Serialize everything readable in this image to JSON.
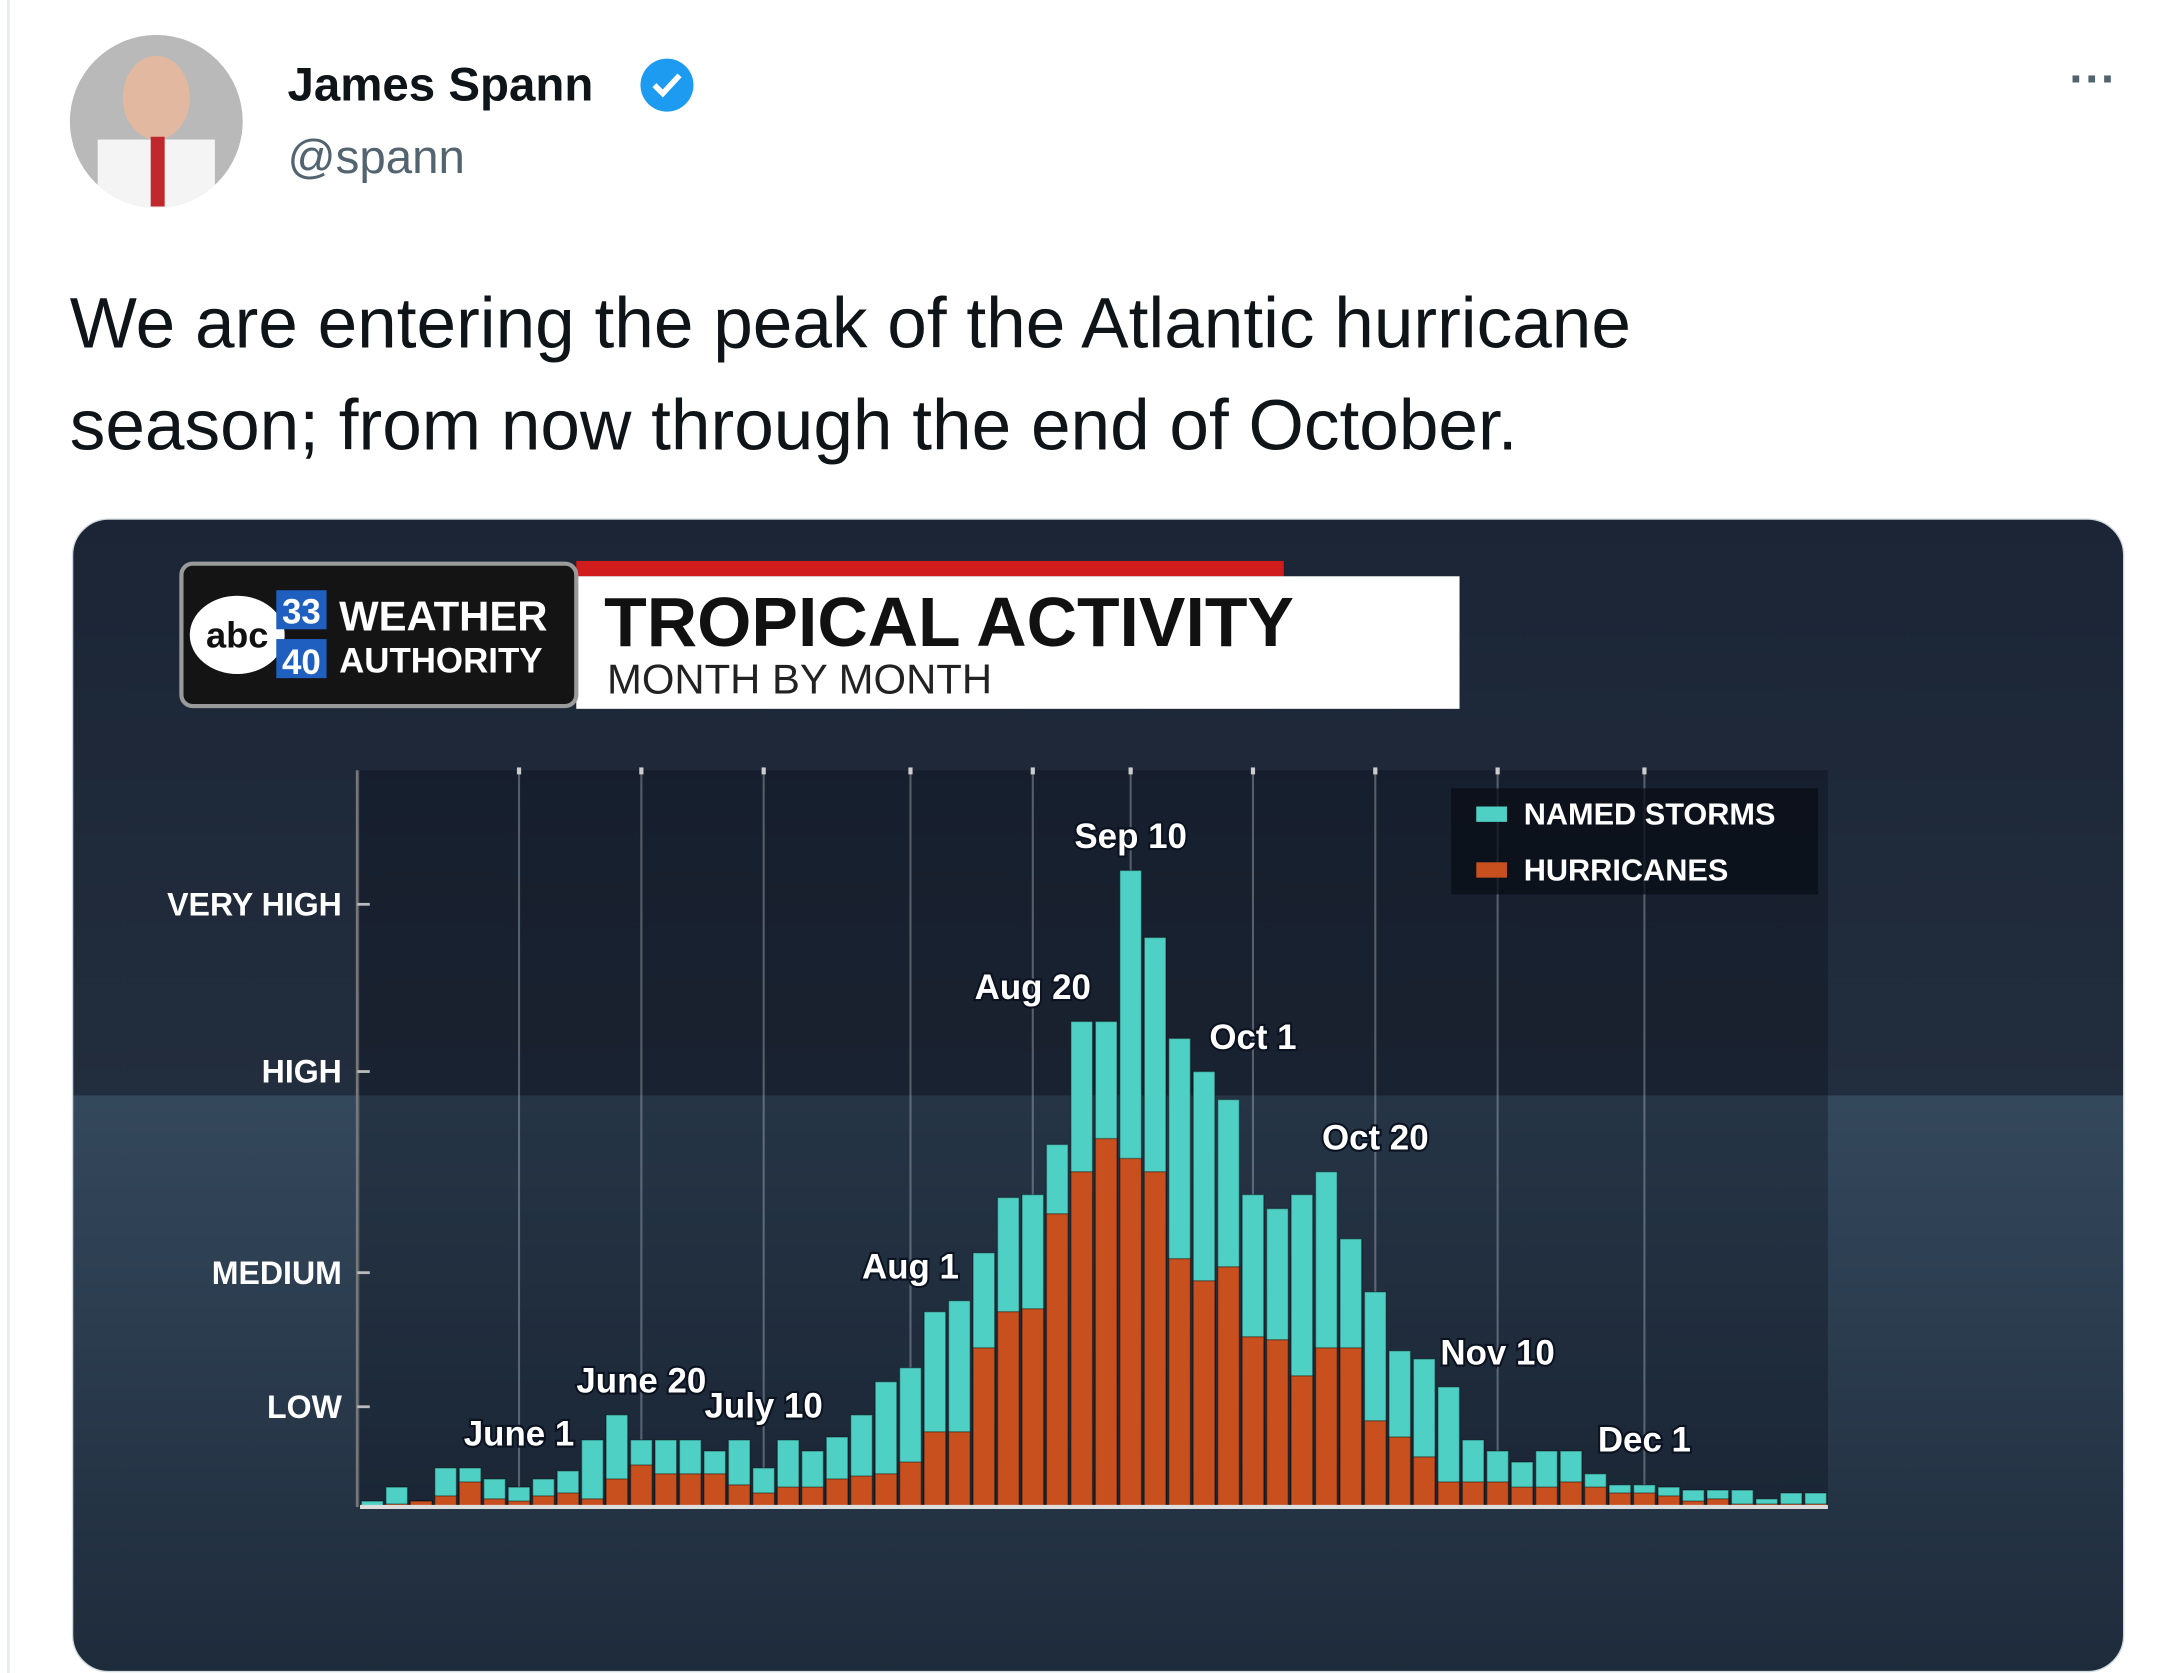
{
  "tweet": {
    "name": "James Spann",
    "handle": "@spann",
    "menu": "···",
    "text": [
      "We are entering the peak of the Atlantic hurricane",
      "season; from now through the end of October."
    ]
  },
  "chart_data": {
    "type": "bar",
    "logo": {
      "network": "abc",
      "channels": [
        "33",
        "40"
      ],
      "brand": [
        "WEATHER",
        "AUTHORITY"
      ]
    },
    "title": "TROPICAL ACTIVITY",
    "subtitle": "MONTH BY MONTH",
    "categories": [
      null,
      null,
      null,
      null,
      null,
      null,
      "June 1",
      null,
      null,
      null,
      null,
      "June 20",
      null,
      null,
      null,
      null,
      "July 10",
      null,
      null,
      null,
      null,
      null,
      "Aug 1",
      null,
      null,
      null,
      null,
      "Aug 20",
      null,
      null,
      null,
      "Sep 10",
      null,
      null,
      null,
      null,
      "Oct 1",
      null,
      null,
      null,
      null,
      "Oct 20",
      null,
      null,
      null,
      null,
      "Nov 10",
      null,
      null,
      null,
      null,
      null,
      "Dec 1",
      null,
      null,
      null,
      null,
      null,
      null,
      null
    ],
    "series": [
      {
        "name": "NAMED STORMS",
        "color": "#4fd0c4",
        "values": [
          0.8,
          2.7,
          0.8,
          5.3,
          5.3,
          3.8,
          2.7,
          3.8,
          4.9,
          9.1,
          12.5,
          9.1,
          9.1,
          9.1,
          7.6,
          9.1,
          5.3,
          9.1,
          7.6,
          9.5,
          12.5,
          17.0,
          18.9,
          26.5,
          28.0,
          34.5,
          42.0,
          42.4,
          49.2,
          65.9,
          65.9,
          86.4,
          77.3,
          63.6,
          59.1,
          55.3,
          42.4,
          40.5,
          42.4,
          45.5,
          36.4,
          29.2,
          21.2,
          20.1,
          16.3,
          9.1,
          7.6,
          6.1,
          7.6,
          7.6,
          4.5,
          3.0,
          3.0,
          2.7,
          2.3,
          2.3,
          2.3,
          1.1,
          1.9,
          1.9
        ]
      },
      {
        "name": "HURRICANES",
        "color": "#c84f1e",
        "values": [
          0,
          0.4,
          0.8,
          1.5,
          3.4,
          1.1,
          0.8,
          1.5,
          1.9,
          1.1,
          3.8,
          5.7,
          4.5,
          4.5,
          4.5,
          3.0,
          1.9,
          2.7,
          2.7,
          3.8,
          4.2,
          4.5,
          6.1,
          10.2,
          10.2,
          21.6,
          26.5,
          26.9,
          39.8,
          45.5,
          50.0,
          47.3,
          45.5,
          33.7,
          30.7,
          32.6,
          23.1,
          22.7,
          17.8,
          21.6,
          21.6,
          11.7,
          9.5,
          6.8,
          3.4,
          3.4,
          3.4,
          2.7,
          2.7,
          3.4,
          2.7,
          1.9,
          1.9,
          1.5,
          0.8,
          1.1,
          0.4,
          0.4,
          0.4,
          0.4
        ]
      }
    ],
    "ylim": [
      0,
      100
    ],
    "yticks": [
      {
        "value": 13.6,
        "label": "LOW"
      },
      {
        "value": 31.8,
        "label": "MEDIUM"
      },
      {
        "value": 59.1,
        "label": "HIGH"
      },
      {
        "value": 81.8,
        "label": "VERY HIGH"
      }
    ],
    "grid": true,
    "legend": "upper right"
  }
}
